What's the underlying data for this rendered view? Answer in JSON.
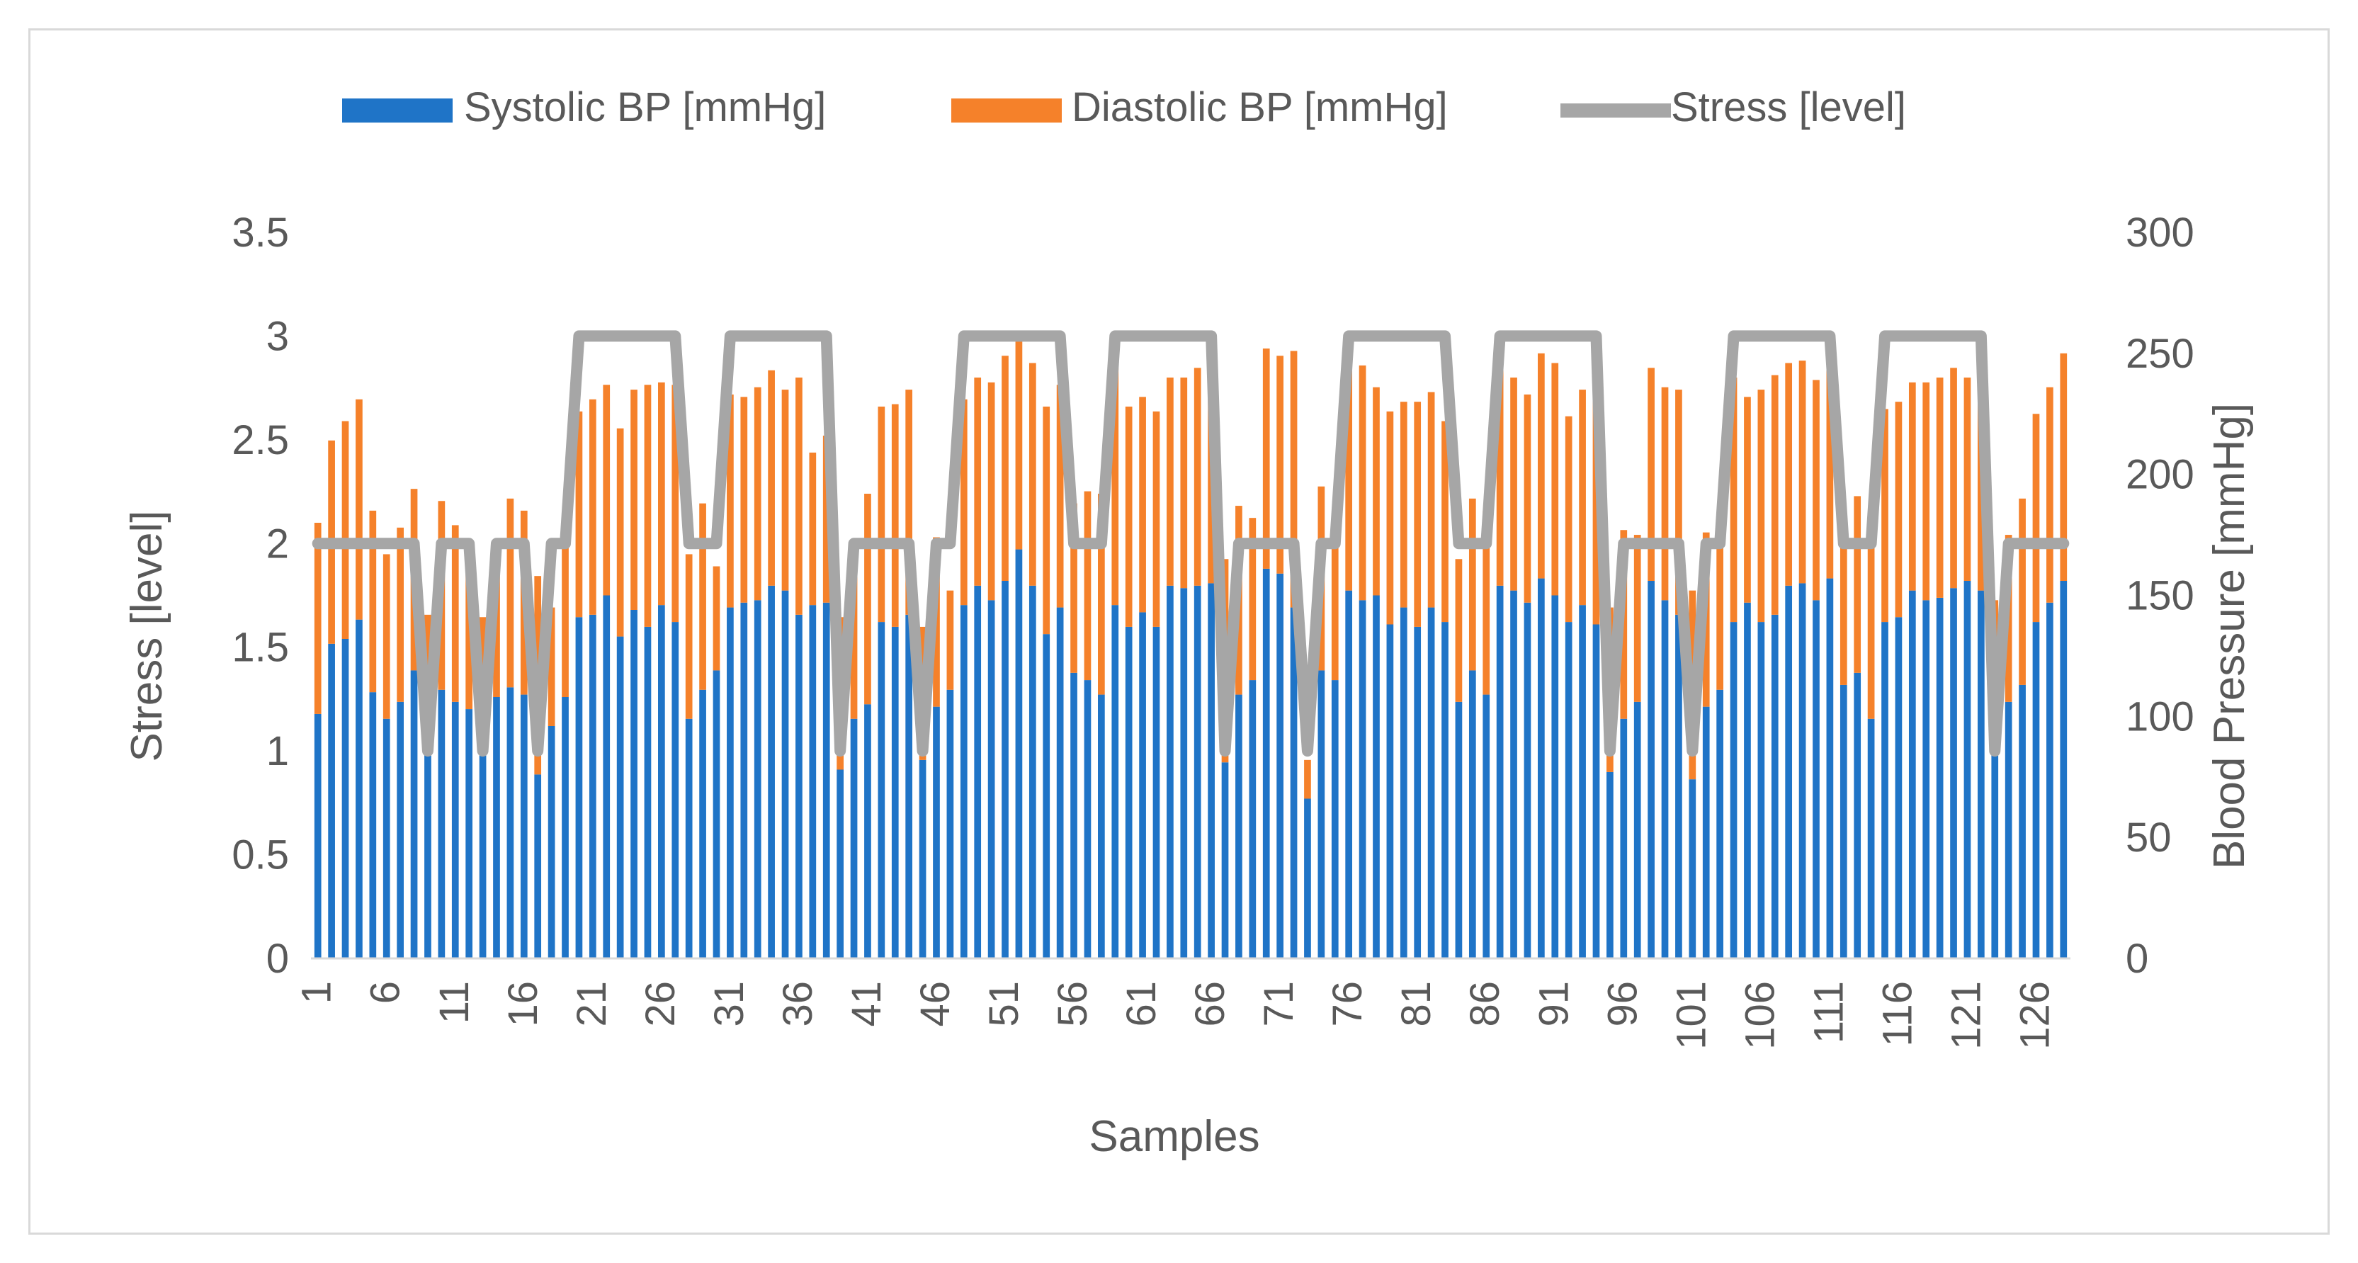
{
  "chart_data": {
    "type": "bar",
    "title": "",
    "xlabel": "Samples",
    "ylabel_left": "Stress [level]",
    "ylabel_right": "Blood Pressure [mmHg]",
    "ylim_left": [
      0,
      3.5
    ],
    "ylim_right": [
      0,
      300
    ],
    "yticks_left": [
      "0",
      "0.5",
      "1",
      "1.5",
      "2",
      "2.5",
      "3",
      "3.5"
    ],
    "yticks_right": [
      "0",
      "50",
      "100",
      "150",
      "200",
      "250",
      "300"
    ],
    "xticks": [
      "1",
      "6",
      "11",
      "16",
      "21",
      "26",
      "31",
      "36",
      "41",
      "46",
      "51",
      "56",
      "61",
      "66",
      "71",
      "76",
      "81",
      "86",
      "91",
      "96",
      "101",
      "106",
      "111",
      "116",
      "121",
      "126"
    ],
    "legend_position": "top",
    "grid": false,
    "colors": {
      "systolic": "#1f74c7",
      "diastolic": "#f5812a",
      "stress": "#a6a6a6"
    },
    "series": [
      {
        "name": "Systolic BP [mmHg]",
        "axis": "right",
        "kind": "stacked-bar",
        "values": [
          101,
          130,
          132,
          140,
          110,
          99,
          106,
          119,
          85,
          111,
          106,
          103,
          85,
          108,
          112,
          109,
          76,
          96,
          108,
          141,
          142,
          150,
          133,
          144,
          137,
          146,
          139,
          99,
          111,
          119,
          145,
          147,
          148,
          154,
          152,
          142,
          146,
          147,
          78,
          99,
          105,
          139,
          137,
          142,
          82,
          104,
          111,
          146,
          154,
          148,
          156,
          169,
          154,
          134,
          145,
          118,
          115,
          109,
          146,
          137,
          143,
          137,
          154,
          153,
          154,
          155,
          81,
          109,
          115,
          161,
          159,
          145,
          66,
          119,
          115,
          152,
          148,
          150,
          138,
          145,
          137,
          145,
          139,
          106,
          119,
          109,
          154,
          152,
          147,
          157,
          150,
          139,
          146,
          138,
          77,
          99,
          106,
          156,
          148,
          142,
          74,
          104,
          111,
          139,
          147,
          139,
          142,
          154,
          155,
          148,
          157,
          113,
          118,
          99,
          139,
          141,
          152,
          148,
          149,
          153,
          156,
          152,
          84,
          106,
          113,
          139,
          147,
          156
        ],
        "stack_totals": [
          180,
          214,
          222,
          231,
          185,
          167,
          178,
          194,
          142,
          189,
          179,
          169,
          141,
          170,
          190,
          185,
          158,
          145,
          173,
          226,
          231,
          237,
          219,
          235,
          237,
          238,
          237,
          167,
          188,
          162,
          233,
          232,
          236,
          243,
          235,
          240,
          209,
          216,
          141,
          160,
          192,
          228,
          229,
          235,
          137,
          174,
          152,
          231,
          240,
          238,
          249,
          255,
          246,
          228,
          237,
          188,
          193,
          192,
          244,
          228,
          232,
          226,
          240,
          240,
          244,
          240,
          165,
          187,
          182,
          252,
          249,
          251,
          82,
          195,
          171,
          246,
          245,
          236,
          226,
          230,
          230,
          234,
          222,
          165,
          190,
          185,
          245,
          240,
          233,
          250,
          246,
          224,
          235,
          240,
          145,
          177,
          175,
          244,
          236,
          235,
          152,
          176,
          171,
          240,
          232,
          235,
          241,
          246,
          247,
          239,
          243,
          182,
          191,
          181,
          227,
          230,
          238,
          238,
          240,
          244,
          240,
          248,
          148,
          175,
          190,
          225,
          236,
          250
        ]
      },
      {
        "name": "Diastolic BP [mmHg]",
        "axis": "right",
        "kind": "stacked-bar"
      },
      {
        "name": "Stress [level]",
        "axis": "left",
        "kind": "line",
        "values": [
          2,
          2,
          2,
          2,
          2,
          2,
          2,
          2,
          1,
          2,
          2,
          2,
          1,
          2,
          2,
          2,
          1,
          2,
          2,
          3,
          3,
          3,
          3,
          3,
          3,
          3,
          3,
          2,
          2,
          2,
          3,
          3,
          3,
          3,
          3,
          3,
          3,
          3,
          1,
          2,
          2,
          2,
          2,
          2,
          1,
          2,
          2,
          3,
          3,
          3,
          3,
          3,
          3,
          3,
          3,
          2,
          2,
          2,
          3,
          3,
          3,
          3,
          3,
          3,
          3,
          3,
          1,
          2,
          2,
          2,
          2,
          2,
          1,
          2,
          2,
          3,
          3,
          3,
          3,
          3,
          3,
          3,
          3,
          2,
          2,
          2,
          3,
          3,
          3,
          3,
          3,
          3,
          3,
          3,
          1,
          2,
          2,
          2,
          2,
          2,
          1,
          2,
          2,
          3,
          3,
          3,
          3,
          3,
          3,
          3,
          3,
          2,
          2,
          2,
          3,
          3,
          3,
          3,
          3,
          3,
          3,
          3,
          1,
          2,
          2,
          2,
          2,
          2
        ]
      }
    ]
  }
}
